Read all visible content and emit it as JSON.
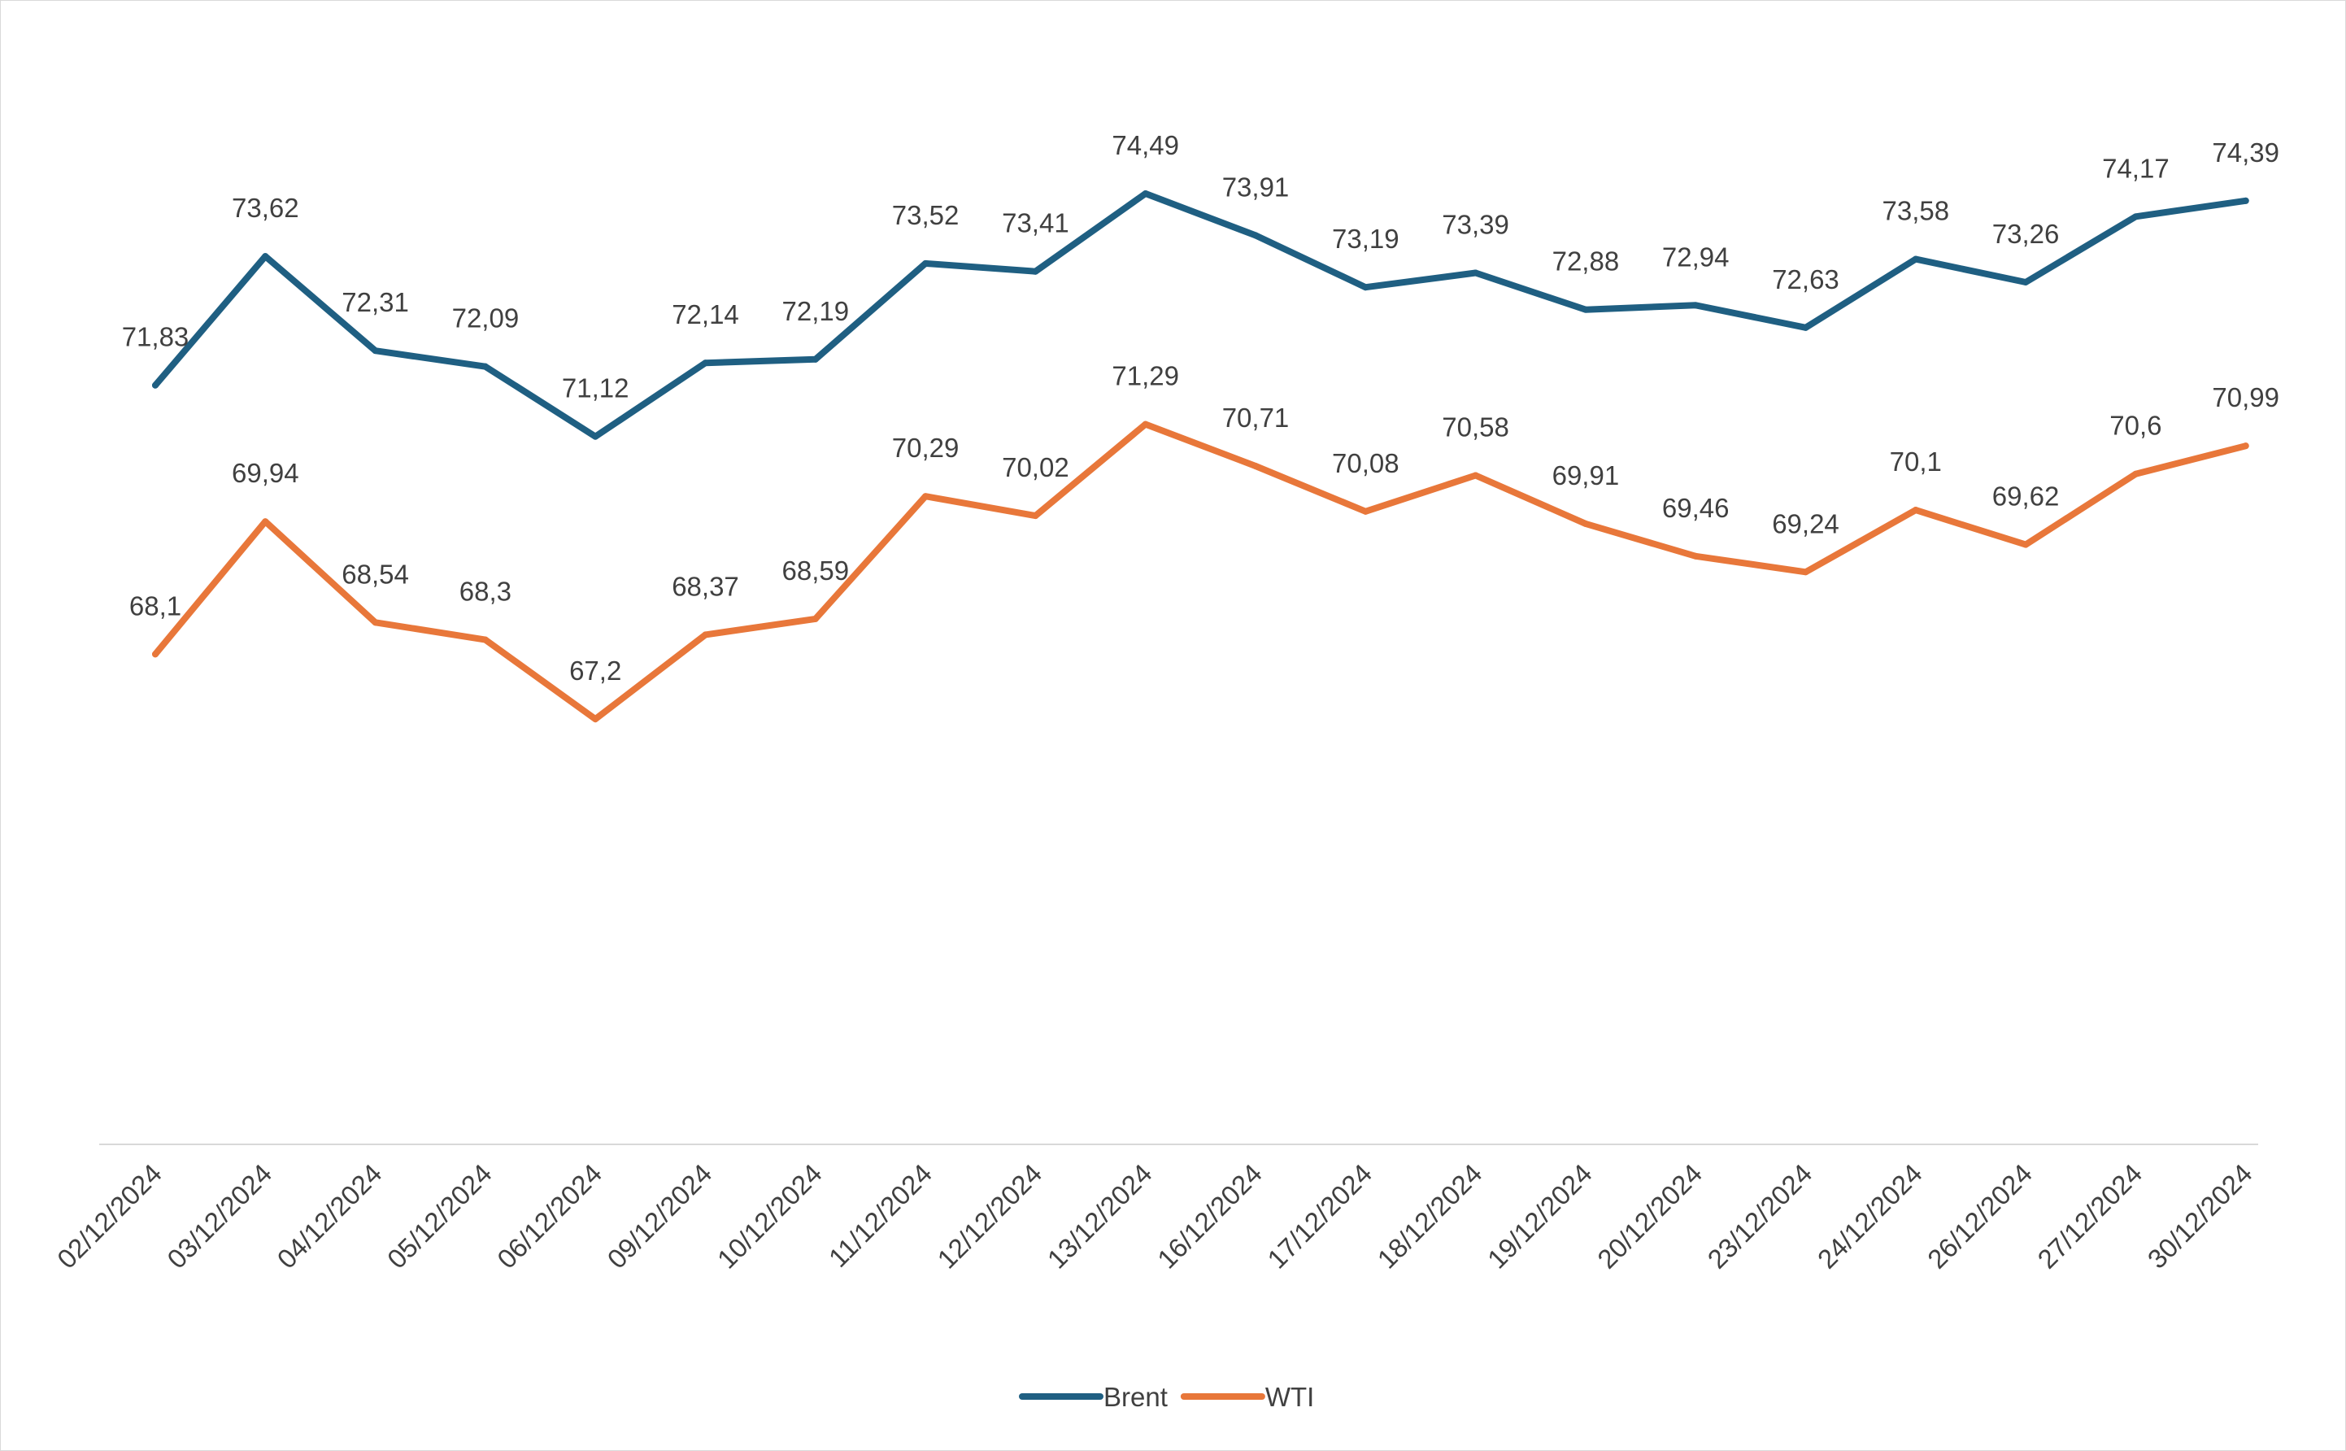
{
  "chart_data": {
    "type": "line",
    "title": "",
    "xlabel": "",
    "ylabel": "",
    "ylim": [
      61.3,
      75.9
    ],
    "grid": false,
    "legend_position": "bottom",
    "categories": [
      "02/12/2024",
      "03/12/2024",
      "04/12/2024",
      "05/12/2024",
      "06/12/2024",
      "09/12/2024",
      "10/12/2024",
      "11/12/2024",
      "12/12/2024",
      "13/12/2024",
      "16/12/2024",
      "17/12/2024",
      "18/12/2024",
      "19/12/2024",
      "20/12/2024",
      "23/12/2024",
      "24/12/2024",
      "26/12/2024",
      "27/12/2024",
      "30/12/2024"
    ],
    "series": [
      {
        "name": "Brent",
        "color": "#1f5f82",
        "values": [
          71.83,
          73.62,
          72.31,
          72.09,
          71.12,
          72.14,
          72.19,
          73.52,
          73.41,
          74.49,
          73.91,
          73.19,
          73.39,
          72.88,
          72.94,
          72.63,
          73.58,
          73.26,
          74.17,
          74.39
        ],
        "labels": [
          "71,83",
          "73,62",
          "72,31",
          "72,09",
          "71,12",
          "72,14",
          "72,19",
          "73,52",
          "73,41",
          "74,49",
          "73,91",
          "73,19",
          "73,39",
          "72,88",
          "72,94",
          "72,63",
          "73,58",
          "73,26",
          "74,17",
          "74,39"
        ]
      },
      {
        "name": "WTI",
        "color": "#e8773a",
        "values": [
          68.1,
          69.94,
          68.54,
          68.3,
          67.2,
          68.37,
          68.59,
          70.29,
          70.02,
          71.29,
          70.71,
          70.08,
          70.58,
          69.91,
          69.46,
          69.24,
          70.1,
          69.62,
          70.6,
          70.99
        ],
        "labels": [
          "68,1",
          "69,94",
          "68,54",
          "68,3",
          "67,2",
          "68,37",
          "68,59",
          "70,29",
          "70,02",
          "71,29",
          "70,71",
          "70,08",
          "70,58",
          "69,91",
          "69,46",
          "69,24",
          "70,1",
          "69,62",
          "70,6",
          "70,99"
        ]
      }
    ]
  }
}
